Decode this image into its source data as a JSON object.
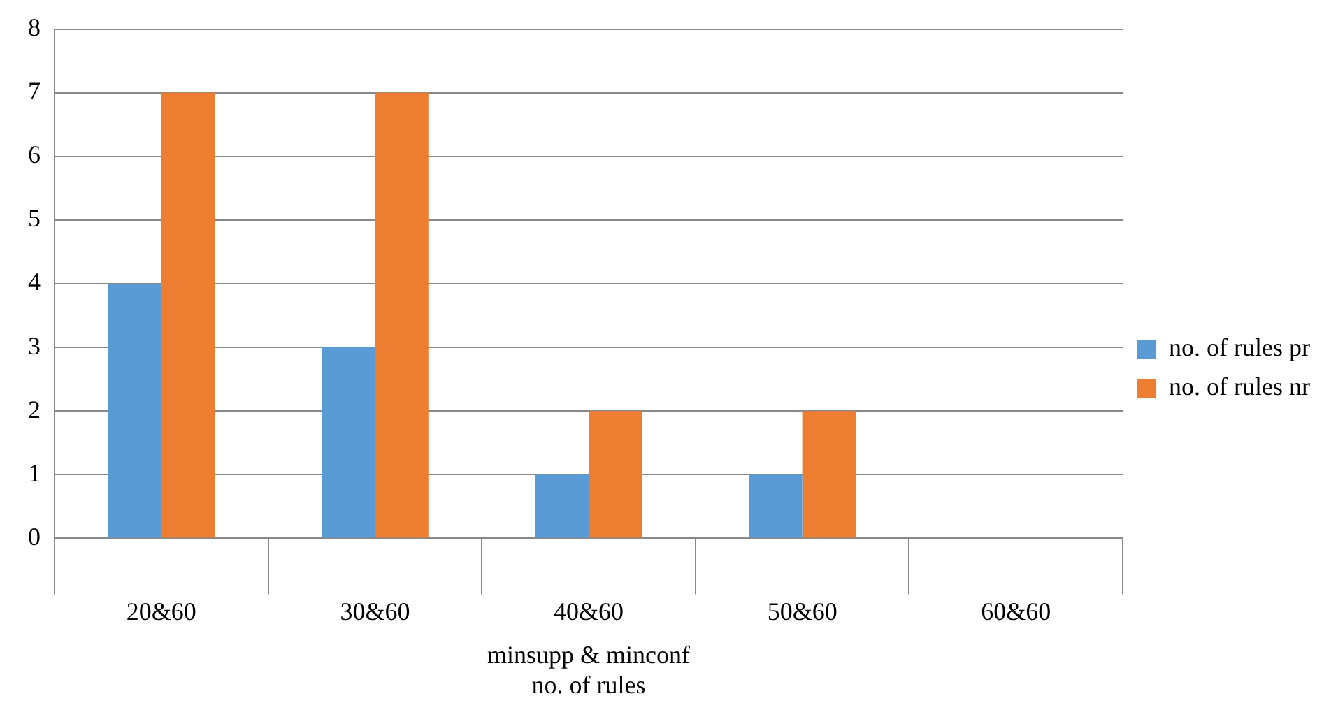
{
  "chart_data": {
    "type": "bar",
    "categories": [
      "20&60",
      "30&60",
      "40&60",
      "50&60",
      "60&60"
    ],
    "series": [
      {
        "name": "no. of rules pr",
        "color": "#5b9bd5",
        "values": [
          4,
          3,
          1,
          1,
          0
        ]
      },
      {
        "name": "no. of rules nr",
        "color": "#ed7d31",
        "values": [
          7,
          7,
          2,
          2,
          0
        ]
      }
    ],
    "xlabel": "minsupp & minconf",
    "annotations": [
      "no. of rules"
    ],
    "ylim": [
      0,
      8
    ],
    "yticks": [
      0,
      1,
      2,
      3,
      4,
      5,
      6,
      7,
      8
    ],
    "grid": "y",
    "legend": "right"
  }
}
